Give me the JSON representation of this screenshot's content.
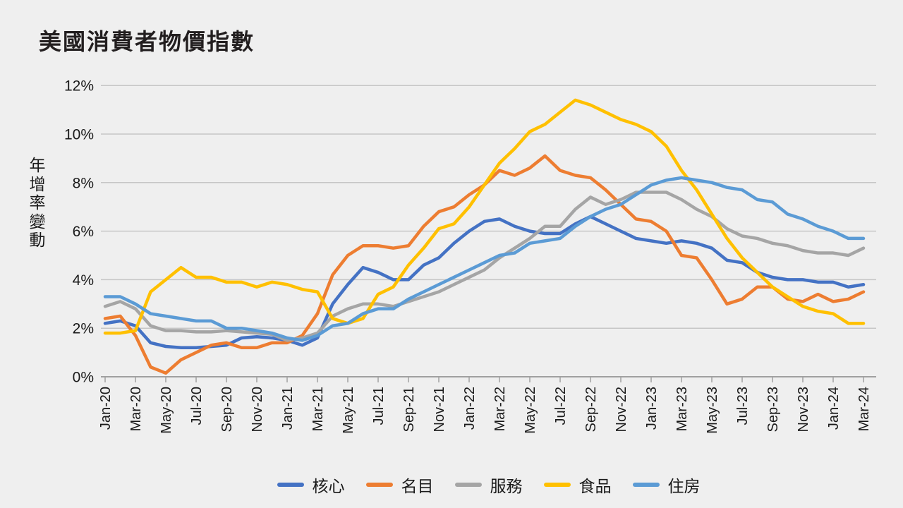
{
  "title": "美國消費者物價指數",
  "y_axis_title": "年增率變動",
  "colors": {
    "background": "#efefef",
    "gridline": "#c6c6c6",
    "axis": "#a0a0a0",
    "text": "#1a1a1a",
    "title_text": "#221e1f"
  },
  "legend": {
    "items": [
      "核心",
      "名目",
      "服務",
      "食品",
      "住房"
    ]
  },
  "chart_data": {
    "type": "line",
    "title": "美國消費者物價指數",
    "xlabel": "",
    "ylabel": "年增率變動",
    "ylim": [
      0,
      12
    ],
    "grid": "horizontal",
    "legend_position": "bottom-center",
    "x_unit": "month",
    "x_range": [
      "Jan-20",
      "Mar-24"
    ],
    "x_tick_labels": [
      "Jan-20",
      "Mar-20",
      "May-20",
      "Jul-20",
      "Sep-20",
      "Nov-20",
      "Jan-21",
      "Mar-21",
      "May-21",
      "Jul-21",
      "Sep-21",
      "Nov-21",
      "Jan-22",
      "Mar-22",
      "May-22",
      "Jul-22",
      "Sep-22",
      "Nov-22",
      "Jan-23",
      "Mar-23",
      "May-23",
      "Jul-23",
      "Sep-23",
      "Nov-23",
      "Jan-24",
      "Mar-24"
    ],
    "yticks": [
      {
        "value": 0,
        "label": "0%"
      },
      {
        "value": 2,
        "label": "2%"
      },
      {
        "value": 4,
        "label": "4%"
      },
      {
        "value": 6,
        "label": "6%"
      },
      {
        "value": 8,
        "label": "8%"
      },
      {
        "value": 10,
        "label": "10%"
      },
      {
        "value": 12,
        "label": "12%"
      }
    ],
    "series": [
      {
        "key": "core",
        "name": "核心",
        "color": "#4472C4",
        "values": [
          2.2,
          2.3,
          2.1,
          1.4,
          1.25,
          1.2,
          1.2,
          1.25,
          1.3,
          1.6,
          1.65,
          1.6,
          1.5,
          1.3,
          1.6,
          3.0,
          3.8,
          4.5,
          4.3,
          4.0,
          4.0,
          4.6,
          4.9,
          5.5,
          6.0,
          6.4,
          6.5,
          6.2,
          6.0,
          5.9,
          5.9,
          6.3,
          6.6,
          6.3,
          6.0,
          5.7,
          5.6,
          5.5,
          5.6,
          5.5,
          5.3,
          4.8,
          4.7,
          4.3,
          4.1,
          4.0,
          4.0,
          3.9,
          3.9,
          3.7,
          3.8
        ]
      },
      {
        "key": "headline",
        "name": "名目",
        "color": "#ED7D31",
        "values": [
          2.4,
          2.5,
          1.7,
          0.4,
          0.15,
          0.7,
          1.0,
          1.3,
          1.4,
          1.2,
          1.2,
          1.4,
          1.4,
          1.7,
          2.6,
          4.2,
          5.0,
          5.4,
          5.4,
          5.3,
          5.4,
          6.2,
          6.8,
          7.0,
          7.5,
          7.9,
          8.5,
          8.3,
          8.6,
          9.1,
          8.5,
          8.3,
          8.2,
          7.7,
          7.1,
          6.5,
          6.4,
          6.0,
          5.0,
          4.9,
          4.0,
          3.0,
          3.2,
          3.7,
          3.7,
          3.2,
          3.1,
          3.4,
          3.1,
          3.2,
          3.5
        ]
      },
      {
        "key": "services",
        "name": "服務",
        "color": "#A5A5A5",
        "values": [
          2.9,
          3.1,
          2.8,
          2.1,
          1.9,
          1.9,
          1.85,
          1.85,
          1.9,
          1.85,
          1.8,
          1.75,
          1.5,
          1.6,
          1.8,
          2.5,
          2.8,
          3.0,
          3.0,
          2.9,
          3.1,
          3.3,
          3.5,
          3.8,
          4.1,
          4.4,
          4.9,
          5.3,
          5.7,
          6.2,
          6.2,
          6.9,
          7.4,
          7.1,
          7.3,
          7.6,
          7.6,
          7.6,
          7.3,
          6.9,
          6.6,
          6.1,
          5.8,
          5.7,
          5.5,
          5.4,
          5.2,
          5.1,
          5.1,
          5.0,
          5.3
        ]
      },
      {
        "key": "food",
        "name": "食品",
        "color": "#FFC000",
        "values": [
          1.8,
          1.8,
          1.9,
          3.5,
          4.0,
          4.5,
          4.1,
          4.1,
          3.9,
          3.9,
          3.7,
          3.9,
          3.8,
          3.6,
          3.5,
          2.4,
          2.2,
          2.4,
          3.4,
          3.7,
          4.6,
          5.3,
          6.1,
          6.3,
          7.0,
          7.9,
          8.8,
          9.4,
          10.1,
          10.4,
          10.9,
          11.4,
          11.2,
          10.9,
          10.6,
          10.4,
          10.1,
          9.5,
          8.5,
          7.7,
          6.7,
          5.7,
          4.9,
          4.3,
          3.7,
          3.3,
          2.9,
          2.7,
          2.6,
          2.2,
          2.2
        ]
      },
      {
        "key": "housing",
        "name": "住房",
        "color": "#5B9BD5",
        "values": [
          3.3,
          3.3,
          3.0,
          2.6,
          2.5,
          2.4,
          2.3,
          2.3,
          2.0,
          2.0,
          1.9,
          1.8,
          1.6,
          1.5,
          1.7,
          2.1,
          2.2,
          2.6,
          2.8,
          2.8,
          3.2,
          3.5,
          3.8,
          4.1,
          4.4,
          4.7,
          5.0,
          5.1,
          5.5,
          5.6,
          5.7,
          6.2,
          6.6,
          6.9,
          7.1,
          7.5,
          7.9,
          8.1,
          8.2,
          8.1,
          8.0,
          7.8,
          7.7,
          7.3,
          7.2,
          6.7,
          6.5,
          6.2,
          6.0,
          5.7,
          5.7
        ]
      }
    ]
  }
}
